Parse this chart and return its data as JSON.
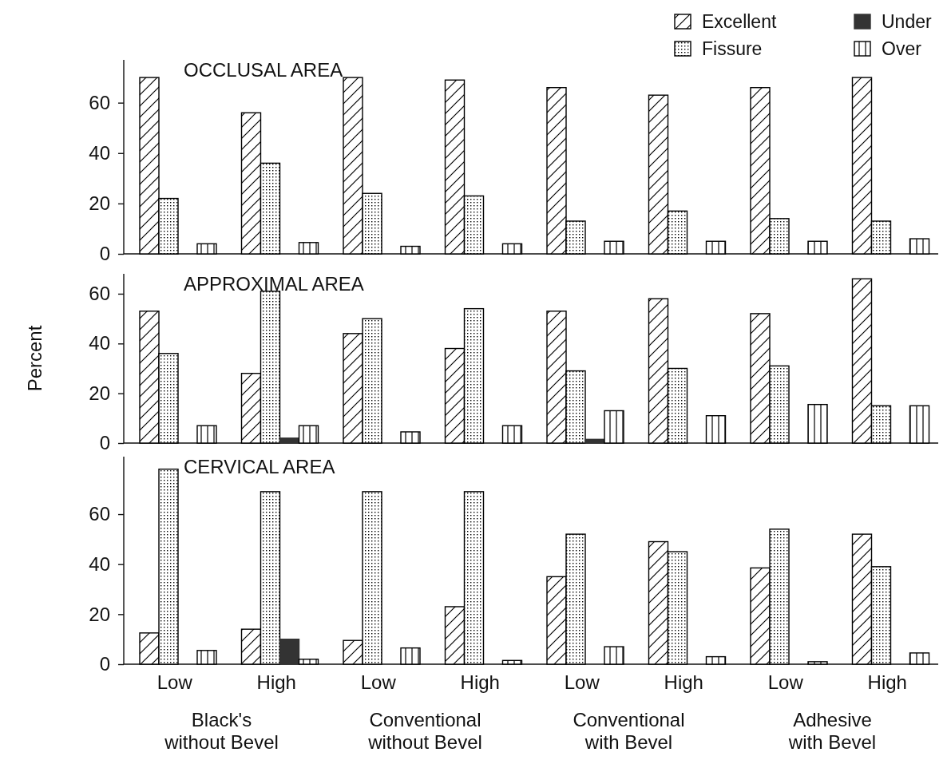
{
  "chart_data": [
    {
      "type": "bar",
      "title": "OCCLUSAL AREA",
      "categories": [
        null,
        null,
        null,
        null,
        null,
        null,
        null,
        null
      ],
      "ylim": [
        0,
        77
      ],
      "yticks": [
        0,
        20,
        40,
        60
      ],
      "tick_labels": "y",
      "legend": "top right",
      "series": [
        {
          "name": "Excellent",
          "color": "#000000",
          "values": [
            70,
            56,
            70,
            69,
            66,
            63,
            66,
            70
          ]
        },
        {
          "name": "Fissure",
          "color": "#000000",
          "values": [
            22,
            36,
            24,
            23,
            13,
            17,
            14,
            13
          ]
        },
        {
          "name": "Under",
          "color": "#333333",
          "values": [
            0,
            0,
            0,
            0,
            0,
            0,
            0,
            0
          ]
        },
        {
          "name": "Over",
          "color": "#000000",
          "values": [
            4,
            4.5,
            3,
            4,
            5,
            5,
            5,
            6
          ]
        }
      ]
    },
    {
      "type": "bar",
      "title": "APPROXIMAL AREA",
      "ylabel": "Percent",
      "categories": [
        null,
        null,
        null,
        null,
        null,
        null,
        null,
        null
      ],
      "ylim": [
        0,
        68
      ],
      "yticks": [
        0,
        20,
        40,
        60
      ],
      "tick_labels": "y",
      "series": [
        {
          "color": "#000000",
          "values": [
            53,
            28,
            44,
            38,
            53,
            58,
            52,
            66
          ]
        },
        {
          "color": "#000000",
          "values": [
            36,
            61,
            50,
            54,
            29,
            30,
            31,
            15
          ]
        },
        {
          "color": "#333333",
          "values": [
            0,
            2,
            0,
            0,
            1.5,
            0,
            0,
            0
          ]
        },
        {
          "color": "#000000",
          "values": [
            7,
            7,
            4.5,
            7,
            13,
            11,
            15.5,
            15
          ]
        }
      ]
    },
    {
      "type": "bar",
      "title": "CERVICAL AREA",
      "categories": [
        "Low",
        "High",
        "Low",
        "High",
        "Low",
        "High",
        "Low",
        "High"
      ],
      "ylim": [
        0,
        83
      ],
      "yticks": [
        0,
        20,
        40,
        60
      ],
      "annotations": [
        "Black's\nwithout Bevel",
        "Conventional\nwithout Bevel",
        "Conventional\nwith Bevel",
        "Adhesive\nwith Bevel"
      ],
      "series": [
        {
          "color": "#000000",
          "values": [
            12.5,
            14,
            9.5,
            23,
            35,
            49,
            38.5,
            52
          ]
        },
        {
          "color": "#000000",
          "values": [
            78,
            69,
            69,
            69,
            52,
            45,
            54,
            39
          ]
        },
        {
          "color": "#333333",
          "values": [
            0,
            10,
            0,
            0,
            0,
            0,
            0,
            0
          ]
        },
        {
          "color": "#000000",
          "values": [
            5.5,
            2,
            6.5,
            1.5,
            7,
            3,
            1,
            4.5
          ]
        }
      ]
    }
  ]
}
